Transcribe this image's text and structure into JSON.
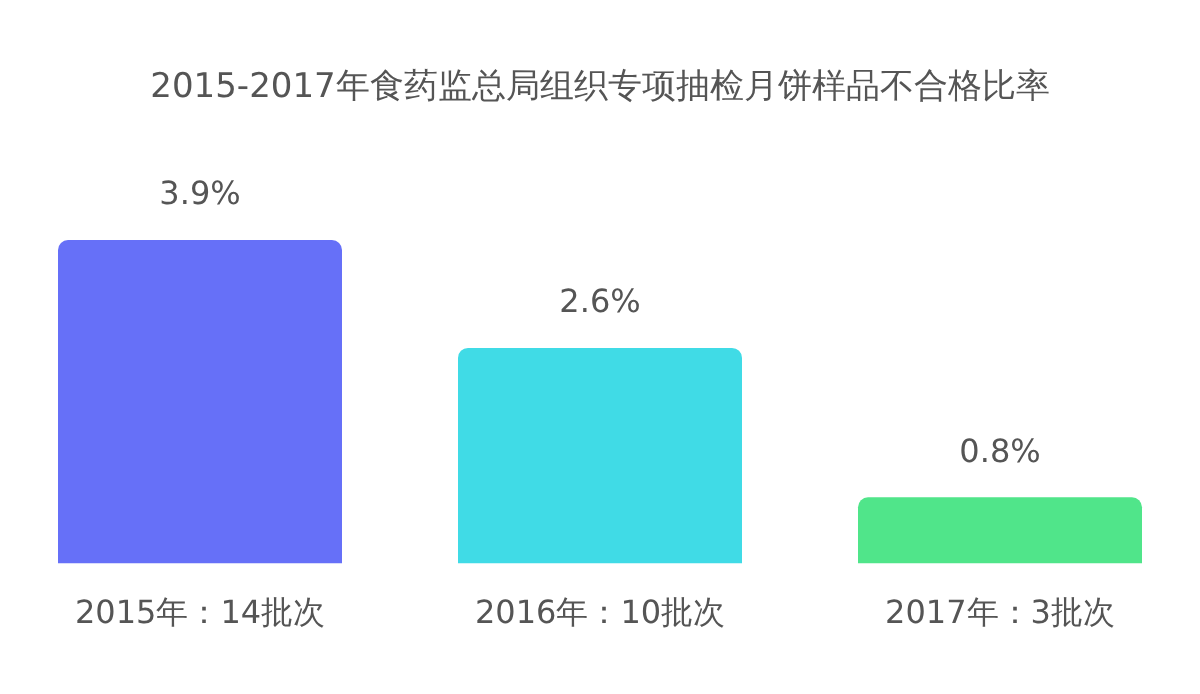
{
  "chart_data": {
    "type": "bar",
    "title": "2015-2017年食药监总局组织专项抽检月饼样品不合格比率",
    "categories": [
      "2015年：14批次",
      "2016年：10批次",
      "2017年：3批次"
    ],
    "values": [
      3.9,
      2.6,
      0.8
    ],
    "colors": [
      "#6670f8",
      "#40dbe6",
      "#50e58a"
    ],
    "value_labels": [
      "3.9%",
      "2.6%",
      "0.8%"
    ]
  }
}
